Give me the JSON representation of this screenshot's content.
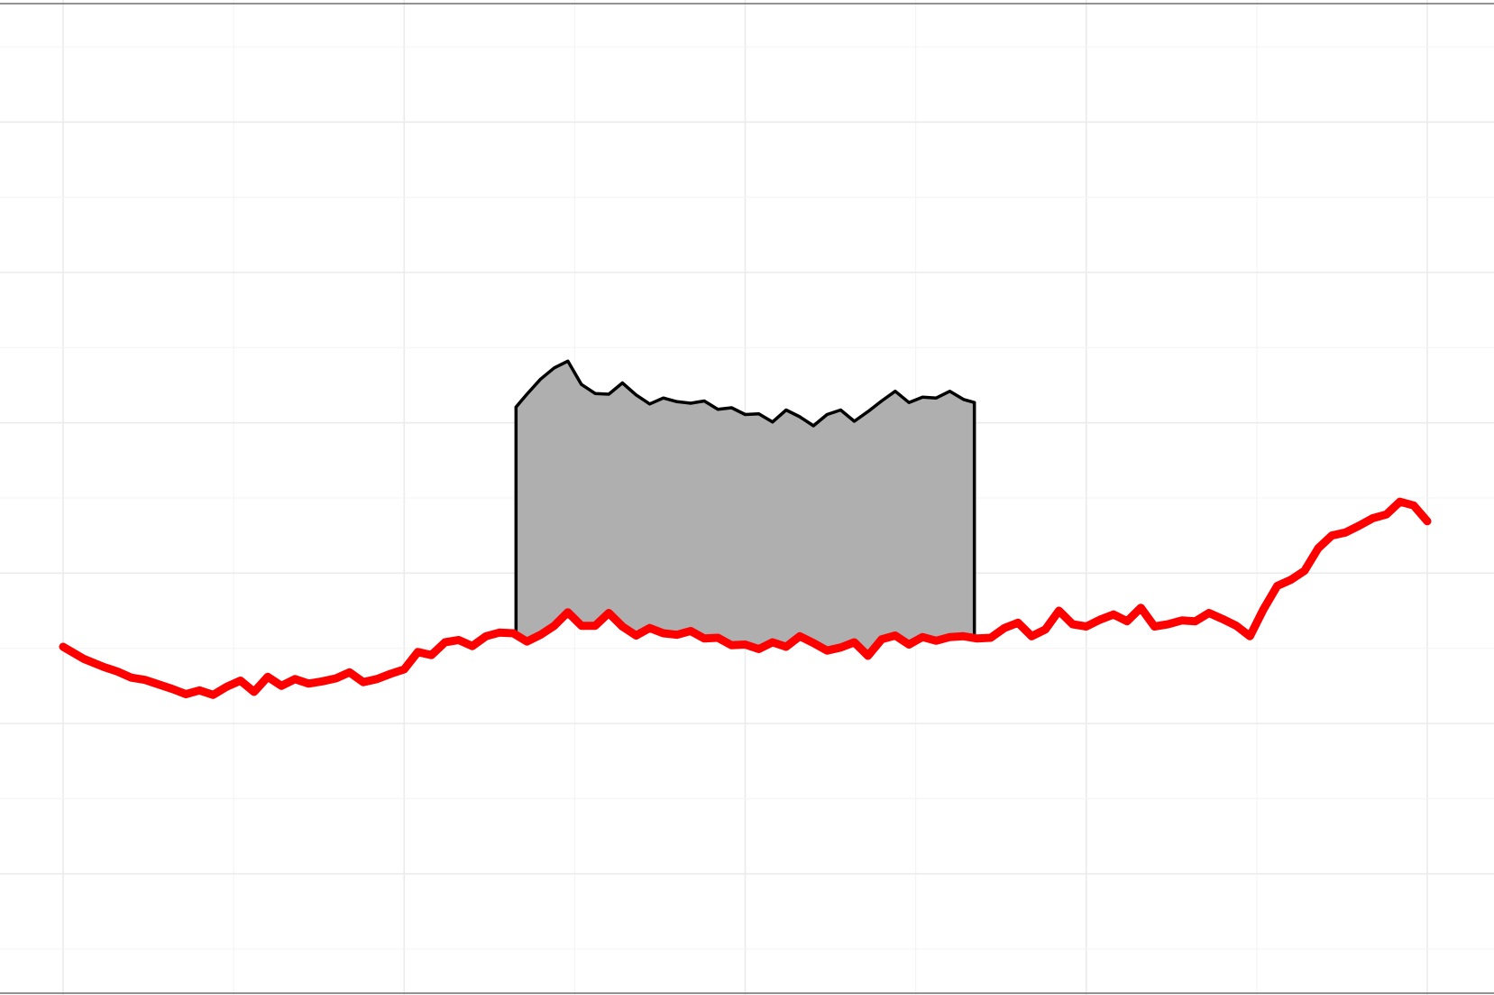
{
  "chart_data": {
    "type": "line",
    "title": "",
    "xlabel": "",
    "ylabel": "",
    "xlim": [
      0,
      100
    ],
    "ylim": [
      -10,
      110
    ],
    "grid": true,
    "legend": "none",
    "colors": {
      "baseline_series": "#ff0000",
      "band_top_series": "#000000",
      "band_fill": "#afafaf",
      "grid": "#ebebeb",
      "background": "#ffffff"
    },
    "series": [
      {
        "x": [
          0,
          1.5,
          3,
          4,
          5,
          6,
          7,
          8,
          9,
          10,
          11,
          12,
          13,
          14,
          15,
          16,
          17,
          18,
          19,
          20,
          21,
          22,
          23,
          24,
          25,
          26,
          27,
          28,
          29,
          30,
          31,
          32,
          33,
          34,
          35,
          36,
          37,
          38,
          39,
          40,
          41,
          42,
          43,
          44,
          45,
          46,
          47,
          48,
          49,
          50,
          51,
          52,
          53,
          54,
          55,
          56,
          57,
          58,
          59,
          60,
          61,
          62,
          63,
          64,
          65,
          66,
          67,
          68,
          69,
          70,
          71,
          72,
          73,
          74,
          75,
          76,
          77,
          78,
          79,
          80,
          81,
          82,
          83,
          84,
          85,
          86,
          87,
          88,
          89,
          90,
          91,
          92,
          93,
          94,
          95,
          96,
          97,
          98,
          99,
          100
        ],
        "y": [
          30.2,
          28.6,
          27.5,
          26.9,
          26.1,
          25.8,
          25.2,
          24.6,
          23.9,
          24.4,
          23.8,
          24.9,
          25.7,
          24.2,
          26.2,
          25.0,
          25.9,
          25.3,
          25.6,
          26.0,
          26.8,
          25.5,
          25.9,
          26.6,
          27.2,
          29.5,
          29.1,
          30.8,
          31.1,
          30.3,
          31.6,
          32.1,
          32.0,
          30.9,
          31.8,
          33.0,
          34.8,
          33.0,
          33.0,
          34.7,
          32.9,
          31.7,
          32.7,
          32.0,
          31.8,
          32.3,
          31.3,
          31.4,
          30.4,
          30.5,
          29.9,
          30.8,
          30.2,
          31.6,
          30.7,
          29.7,
          30.1,
          30.8,
          29.0,
          31.2,
          31.7,
          30.5,
          31.5,
          31.0,
          31.5,
          31.6,
          31.3,
          31.4,
          32.7,
          33.4,
          31.6,
          32.5,
          35.0,
          33.2,
          32.9,
          33.8,
          34.5,
          33.6,
          35.4,
          32.9,
          33.2,
          33.7,
          33.6,
          34.7,
          33.9,
          33.0,
          31.6,
          35.2,
          38.3,
          39.1,
          40.3,
          43.3,
          45.0,
          45.4,
          46.3,
          47.3,
          47.8,
          49.5,
          49.0,
          46.9
        ]
      },
      {
        "x": [
          33.2,
          34,
          35,
          36,
          37,
          38,
          39,
          40,
          41,
          42,
          43,
          44,
          45,
          46,
          47,
          48,
          49,
          50,
          51,
          52,
          53,
          54,
          55,
          56,
          57,
          58,
          59,
          60,
          61,
          62,
          63,
          64,
          65,
          66,
          66.8
        ],
        "y": [
          62.1,
          63.8,
          65.8,
          67.3,
          68.2,
          65.1,
          63.9,
          63.8,
          65.3,
          63.7,
          62.5,
          63.3,
          62.8,
          62.6,
          62.9,
          61.8,
          62.0,
          61.1,
          61.2,
          60.1,
          61.7,
          60.8,
          59.6,
          61.1,
          61.7,
          60.2,
          61.5,
          62.9,
          64.2,
          62.7,
          63.4,
          63.3,
          64.2,
          63.1,
          62.7
        ]
      }
    ]
  }
}
